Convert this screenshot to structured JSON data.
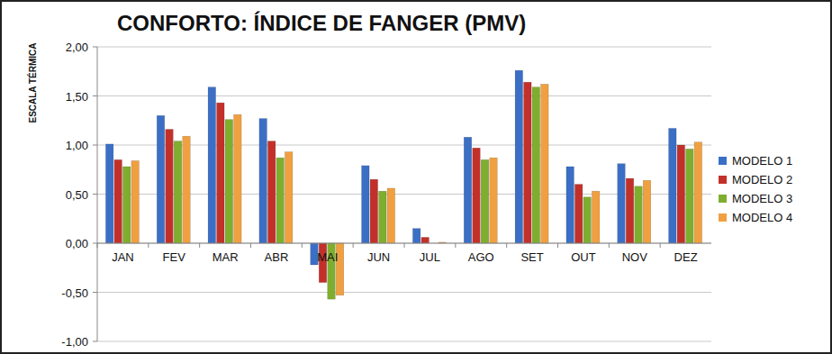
{
  "chart_data": {
    "type": "bar",
    "title": "CONFORTO: ÍNDICE DE FANGER (PMV)",
    "y_label": "ESCALA TÉRMICA",
    "categories": [
      "JAN",
      "FEV",
      "MAR",
      "ABR",
      "MAI",
      "JUN",
      "JUL",
      "AGO",
      "SET",
      "OUT",
      "NOV",
      "DEZ"
    ],
    "series": [
      {
        "name": "MODELO 1",
        "color": "#3b6fc6",
        "values": [
          1.01,
          1.3,
          1.59,
          1.27,
          -0.22,
          0.79,
          0.15,
          1.08,
          1.76,
          0.78,
          0.81,
          1.17
        ]
      },
      {
        "name": "MODELO 2",
        "color": "#c3302a",
        "values": [
          0.85,
          1.16,
          1.43,
          1.04,
          -0.4,
          0.65,
          0.06,
          0.97,
          1.64,
          0.6,
          0.66,
          1.0
        ]
      },
      {
        "name": "MODELO 3",
        "color": "#7fae2e",
        "values": [
          0.78,
          1.04,
          1.26,
          0.87,
          -0.57,
          0.53,
          0.0,
          0.85,
          1.59,
          0.47,
          0.58,
          0.96
        ]
      },
      {
        "name": "MODELO 4",
        "color": "#f0a040",
        "values": [
          0.84,
          1.09,
          1.31,
          0.93,
          -0.53,
          0.56,
          0.01,
          0.87,
          1.62,
          0.53,
          0.64,
          1.03
        ]
      }
    ],
    "ylim": [
      -1,
      2
    ],
    "yticks": [
      {
        "value": -1,
        "label": "-1,00"
      },
      {
        "value": -0.5,
        "label": "-0,50"
      },
      {
        "value": 0,
        "label": "0,00"
      },
      {
        "value": 0.5,
        "label": "0,50"
      },
      {
        "value": 1,
        "label": "1,00"
      },
      {
        "value": 1.5,
        "label": "1,50"
      },
      {
        "value": 2,
        "label": "2,00"
      }
    ],
    "grid": true,
    "legend": "right"
  }
}
